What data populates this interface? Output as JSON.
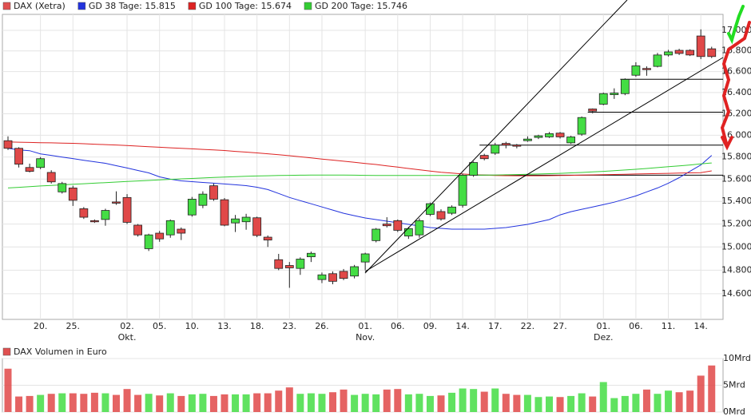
{
  "chart_data": [
    {
      "type": "candlestick",
      "candles": {
        "name": "DAX (Xetra)",
        "legend_color": "#e05050",
        "up_color": "#44dd44",
        "down_color": "#e04848",
        "open": [
          15950,
          15880,
          15705,
          15705,
          15660,
          15485,
          15520,
          15335,
          15230,
          15240,
          15395,
          15435,
          15190,
          14985,
          15120,
          15105,
          15155,
          15280,
          15365,
          15540,
          15415,
          15210,
          15220,
          15255,
          15085,
          14890,
          14840,
          14815,
          14915,
          14720,
          14770,
          14790,
          14750,
          14870,
          15055,
          15200,
          15230,
          15095,
          15105,
          15285,
          15310,
          15295,
          15365,
          15635,
          15815,
          15835,
          15925,
          15910,
          15950,
          15980,
          15985,
          16020,
          15930,
          16010,
          16245,
          16290,
          16380,
          16390,
          16565,
          16630,
          16650,
          16760,
          16805,
          16805,
          16945,
          16820
        ],
        "high": [
          15990,
          15890,
          15740,
          15800,
          15680,
          15575,
          15540,
          15350,
          15240,
          15335,
          15490,
          15465,
          15200,
          15115,
          15140,
          15240,
          15170,
          15440,
          15490,
          15560,
          15430,
          15280,
          15290,
          15265,
          15100,
          14940,
          14870,
          14910,
          14960,
          14780,
          14790,
          14810,
          14845,
          14950,
          15165,
          15260,
          15240,
          15175,
          15250,
          15390,
          15330,
          15365,
          15650,
          15760,
          15830,
          15930,
          15940,
          15920,
          15990,
          16005,
          16030,
          16030,
          15995,
          16175,
          16250,
          16400,
          16440,
          16535,
          16690,
          16650,
          16780,
          16810,
          16820,
          16815,
          17010,
          16840
        ],
        "low": [
          15865,
          15705,
          15660,
          15690,
          15560,
          15470,
          15360,
          15245,
          15210,
          15185,
          15370,
          15200,
          15090,
          14965,
          15045,
          15080,
          15060,
          15265,
          15340,
          15405,
          15180,
          15130,
          15150,
          15085,
          15000,
          14800,
          14650,
          14760,
          14870,
          14690,
          14680,
          14715,
          14730,
          14800,
          15040,
          15170,
          15130,
          15070,
          15080,
          15270,
          15230,
          15280,
          15345,
          15620,
          15770,
          15820,
          15880,
          15880,
          15940,
          15965,
          15975,
          15970,
          15920,
          15995,
          16205,
          16280,
          16340,
          16375,
          16550,
          16560,
          16640,
          16745,
          16760,
          16750,
          16720,
          16730
        ],
        "close": [
          15880,
          15735,
          15670,
          15785,
          15575,
          15560,
          15410,
          15260,
          15225,
          15320,
          15385,
          15215,
          15105,
          15105,
          15070,
          15230,
          15120,
          15420,
          15465,
          15420,
          15190,
          15245,
          15260,
          15100,
          15060,
          14815,
          14820,
          14895,
          14945,
          14760,
          14705,
          14730,
          14830,
          14940,
          15155,
          15185,
          15145,
          15160,
          15230,
          15380,
          15245,
          15350,
          15635,
          15750,
          15785,
          15910,
          15910,
          15900,
          15965,
          15995,
          16015,
          15985,
          15985,
          16165,
          16225,
          16390,
          16395,
          16525,
          16655,
          16620,
          16760,
          16790,
          16775,
          16760,
          16745,
          16745
        ]
      },
      "series": [
        {
          "name": "GD 38 Tage: 15.815",
          "color": "#2233dd",
          "values": [
            15880,
            15865,
            15858,
            15829,
            15815,
            15800,
            15786,
            15771,
            15757,
            15743,
            15721,
            15700,
            15678,
            15656,
            15620,
            15599,
            15584,
            15577,
            15570,
            15563,
            15556,
            15549,
            15541,
            15527,
            15506,
            15471,
            15435,
            15407,
            15379,
            15351,
            15323,
            15295,
            15274,
            15253,
            15239,
            15225,
            15211,
            15197,
            15183,
            15169,
            15162,
            15155,
            15155,
            15155,
            15155,
            15162,
            15169,
            15183,
            15197,
            15218,
            15239,
            15281,
            15309,
            15330,
            15351,
            15372,
            15393,
            15421,
            15449,
            15485,
            15520,
            15563,
            15613,
            15671,
            15728,
            15815
          ]
        },
        {
          "name": "GD 100 Tage: 15.674",
          "color": "#dd2222",
          "values": [
            15938,
            15936,
            15934,
            15932,
            15930,
            15928,
            15926,
            15922,
            15918,
            15914,
            15910,
            15905,
            15900,
            15895,
            15890,
            15885,
            15880,
            15875,
            15870,
            15865,
            15860,
            15852,
            15845,
            15838,
            15830,
            15822,
            15812,
            15802,
            15792,
            15782,
            15772,
            15762,
            15752,
            15742,
            15732,
            15720,
            15708,
            15696,
            15684,
            15672,
            15662,
            15654,
            15646,
            15640,
            15636,
            15633,
            15631,
            15630,
            15630,
            15630,
            15631,
            15632,
            15634,
            15636,
            15638,
            15640,
            15642,
            15644,
            15646,
            15648,
            15650,
            15652,
            15654,
            15656,
            15658,
            15674
          ]
        },
        {
          "name": "GD 200 Tage: 15.746",
          "color": "#33cc33",
          "values": [
            15520,
            15526,
            15532,
            15538,
            15543,
            15548,
            15553,
            15558,
            15563,
            15568,
            15573,
            15578,
            15583,
            15588,
            15593,
            15598,
            15602,
            15606,
            15610,
            15614,
            15618,
            15622,
            15625,
            15628,
            15630,
            15632,
            15634,
            15635,
            15636,
            15636,
            15636,
            15636,
            15635,
            15634,
            15633,
            15632,
            15632,
            15632,
            15632,
            15632,
            15632,
            15633,
            15634,
            15635,
            15636,
            15637,
            15639,
            15641,
            15643,
            15646,
            15649,
            15652,
            15656,
            15660,
            15665,
            15670,
            15676,
            15682,
            15689,
            15696,
            15704,
            15712,
            15720,
            15728,
            15737,
            15746
          ]
        }
      ],
      "categories": [
        null,
        null,
        null,
        "20.",
        null,
        null,
        "25.",
        null,
        null,
        null,
        null,
        "02.",
        null,
        null,
        "05.",
        null,
        null,
        "10.",
        null,
        null,
        "13.",
        null,
        null,
        "18.",
        null,
        null,
        "23.",
        null,
        null,
        "26.",
        null,
        null,
        null,
        "01.",
        null,
        null,
        "06.",
        null,
        null,
        "09.",
        null,
        null,
        "14.",
        null,
        null,
        "17.",
        null,
        null,
        "22.",
        null,
        null,
        "27.",
        null,
        null,
        null,
        "01.",
        null,
        null,
        "06.",
        null,
        null,
        "11.",
        null,
        null,
        "14.",
        null
      ],
      "month_labels": [
        null,
        null,
        null,
        null,
        null,
        null,
        null,
        null,
        null,
        null,
        null,
        "Okt.",
        null,
        null,
        null,
        null,
        null,
        null,
        null,
        null,
        null,
        null,
        null,
        null,
        null,
        null,
        null,
        null,
        null,
        null,
        null,
        null,
        null,
        "Nov.",
        null,
        null,
        null,
        null,
        null,
        null,
        null,
        null,
        null,
        null,
        null,
        null,
        null,
        null,
        null,
        null,
        null,
        null,
        null,
        null,
        null,
        "Dez.",
        null,
        null,
        null,
        null,
        null,
        null,
        null,
        null,
        null,
        null
      ],
      "log_scale": true,
      "ylim": [
        14385,
        17158
      ],
      "yticks": [
        {
          "value": 14600,
          "label": "14.600"
        },
        {
          "value": 14800,
          "label": "14.800"
        },
        {
          "value": 15000,
          "label": "15.000"
        },
        {
          "value": 15200,
          "label": "15.200"
        },
        {
          "value": 15400,
          "label": "15.400"
        },
        {
          "value": 15600,
          "label": "15.600"
        },
        {
          "value": 15800,
          "label": "15.800"
        },
        {
          "value": 16000,
          "label": "16.000"
        },
        {
          "value": 16200,
          "label": "16.200"
        },
        {
          "value": 16400,
          "label": "16.400"
        },
        {
          "value": 16600,
          "label": "16.600"
        },
        {
          "value": 16800,
          "label": "16.800"
        },
        {
          "value": 17000,
          "label": "17.000"
        }
      ],
      "grid": true,
      "levels": [
        {
          "value": 16527,
          "from": 57
        },
        {
          "value": 16215,
          "from": 54
        },
        {
          "value": 15909,
          "from": 44
        },
        {
          "value": 15635,
          "from": 43
        }
      ]
    },
    {
      "type": "bar",
      "title": "DAX Volumen in Euro",
      "title_color": "#e05050",
      "values": [
        8.1,
        2.9,
        3.0,
        3.2,
        3.4,
        3.5,
        3.5,
        3.4,
        3.6,
        3.5,
        3.2,
        4.3,
        3.2,
        3.4,
        3.1,
        3.5,
        3.0,
        3.3,
        3.4,
        3.0,
        3.3,
        3.3,
        3.3,
        3.5,
        3.5,
        4.0,
        4.6,
        3.4,
        3.5,
        3.4,
        3.7,
        4.2,
        3.2,
        3.4,
        3.3,
        4.2,
        4.3,
        3.3,
        3.4,
        3.0,
        3.1,
        3.6,
        4.4,
        4.3,
        3.8,
        4.4,
        3.4,
        3.2,
        3.2,
        2.8,
        2.9,
        2.8,
        3.0,
        3.5,
        2.9,
        5.6,
        2.6,
        3.0,
        3.4,
        4.2,
        3.4,
        4.0,
        3.7,
        4.0,
        6.8,
        8.7
      ],
      "ylim": [
        0,
        10
      ],
      "yticks": [
        {
          "value": 0,
          "label": "0Mrd"
        },
        {
          "value": 5,
          "label": "5Mrd"
        },
        {
          "value": 10,
          "label": "10Mrd"
        }
      ],
      "grid": true
    }
  ]
}
